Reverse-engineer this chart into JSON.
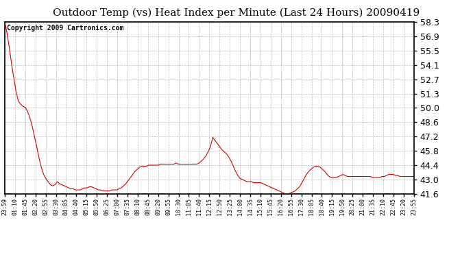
{
  "title": "Outdoor Temp (vs) Heat Index per Minute (Last 24 Hours) 20090419",
  "copyright_text": "Copyright 2009 Cartronics.com",
  "line_color": "#cc0000",
  "bg_color": "#ffffff",
  "grid_color": "#bbbbbb",
  "ylim": [
    41.6,
    58.3
  ],
  "yticks": [
    41.6,
    43.0,
    44.4,
    45.8,
    47.2,
    48.6,
    50.0,
    51.3,
    52.7,
    54.1,
    55.5,
    56.9,
    58.3
  ],
  "x_labels": [
    "23:59",
    "01:10",
    "01:45",
    "02:20",
    "02:55",
    "03:30",
    "04:05",
    "04:40",
    "05:15",
    "05:50",
    "06:25",
    "07:00",
    "07:35",
    "08:10",
    "08:45",
    "09:20",
    "09:55",
    "10:30",
    "11:05",
    "11:40",
    "12:15",
    "12:50",
    "13:25",
    "14:00",
    "14:35",
    "15:10",
    "15:45",
    "16:20",
    "16:55",
    "17:30",
    "18:05",
    "18:40",
    "19:15",
    "19:50",
    "20:25",
    "21:00",
    "21:35",
    "22:10",
    "22:45",
    "23:20",
    "23:55"
  ],
  "data_y": [
    58.3,
    57.2,
    55.8,
    54.2,
    52.8,
    51.5,
    50.6,
    50.3,
    50.1,
    50.0,
    49.6,
    49.0,
    48.2,
    47.2,
    46.2,
    45.1,
    44.2,
    43.5,
    43.1,
    42.8,
    42.5,
    42.4,
    42.5,
    42.8,
    42.6,
    42.5,
    42.4,
    42.3,
    42.2,
    42.1,
    42.1,
    42.0,
    42.0,
    42.0,
    42.1,
    42.2,
    42.2,
    42.3,
    42.3,
    42.2,
    42.1,
    42.0,
    42.0,
    41.9,
    41.9,
    41.9,
    41.9,
    42.0,
    42.0,
    42.0,
    42.1,
    42.2,
    42.4,
    42.6,
    42.9,
    43.2,
    43.5,
    43.8,
    44.0,
    44.2,
    44.3,
    44.3,
    44.3,
    44.4,
    44.4,
    44.4,
    44.4,
    44.4,
    44.5,
    44.5,
    44.5,
    44.5,
    44.5,
    44.5,
    44.5,
    44.6,
    44.5,
    44.5,
    44.5,
    44.5,
    44.5,
    44.5,
    44.5,
    44.5,
    44.5,
    44.6,
    44.8,
    45.0,
    45.3,
    45.7,
    46.2,
    47.1,
    46.8,
    46.5,
    46.2,
    45.9,
    45.7,
    45.5,
    45.2,
    44.8,
    44.3,
    43.8,
    43.4,
    43.1,
    43.0,
    42.9,
    42.8,
    42.8,
    42.8,
    42.7,
    42.7,
    42.7,
    42.7,
    42.6,
    42.5,
    42.4,
    42.3,
    42.2,
    42.1,
    42.0,
    41.9,
    41.8,
    41.7,
    41.6,
    41.6,
    41.7,
    41.8,
    41.9,
    42.1,
    42.3,
    42.7,
    43.1,
    43.5,
    43.8,
    44.0,
    44.2,
    44.3,
    44.3,
    44.2,
    44.0,
    43.8,
    43.5,
    43.3,
    43.2,
    43.2,
    43.2,
    43.3,
    43.4,
    43.5,
    43.4,
    43.3,
    43.3,
    43.3,
    43.3,
    43.3,
    43.3,
    43.3,
    43.3,
    43.3,
    43.3,
    43.3,
    43.2,
    43.2,
    43.2,
    43.2,
    43.3,
    43.3,
    43.4,
    43.5,
    43.5,
    43.5,
    43.4,
    43.4,
    43.3,
    43.3,
    43.3,
    43.3,
    43.3,
    43.3,
    43.3
  ],
  "title_fontsize": 11,
  "ytick_fontsize": 9,
  "xtick_fontsize": 6,
  "copyright_fontsize": 7
}
